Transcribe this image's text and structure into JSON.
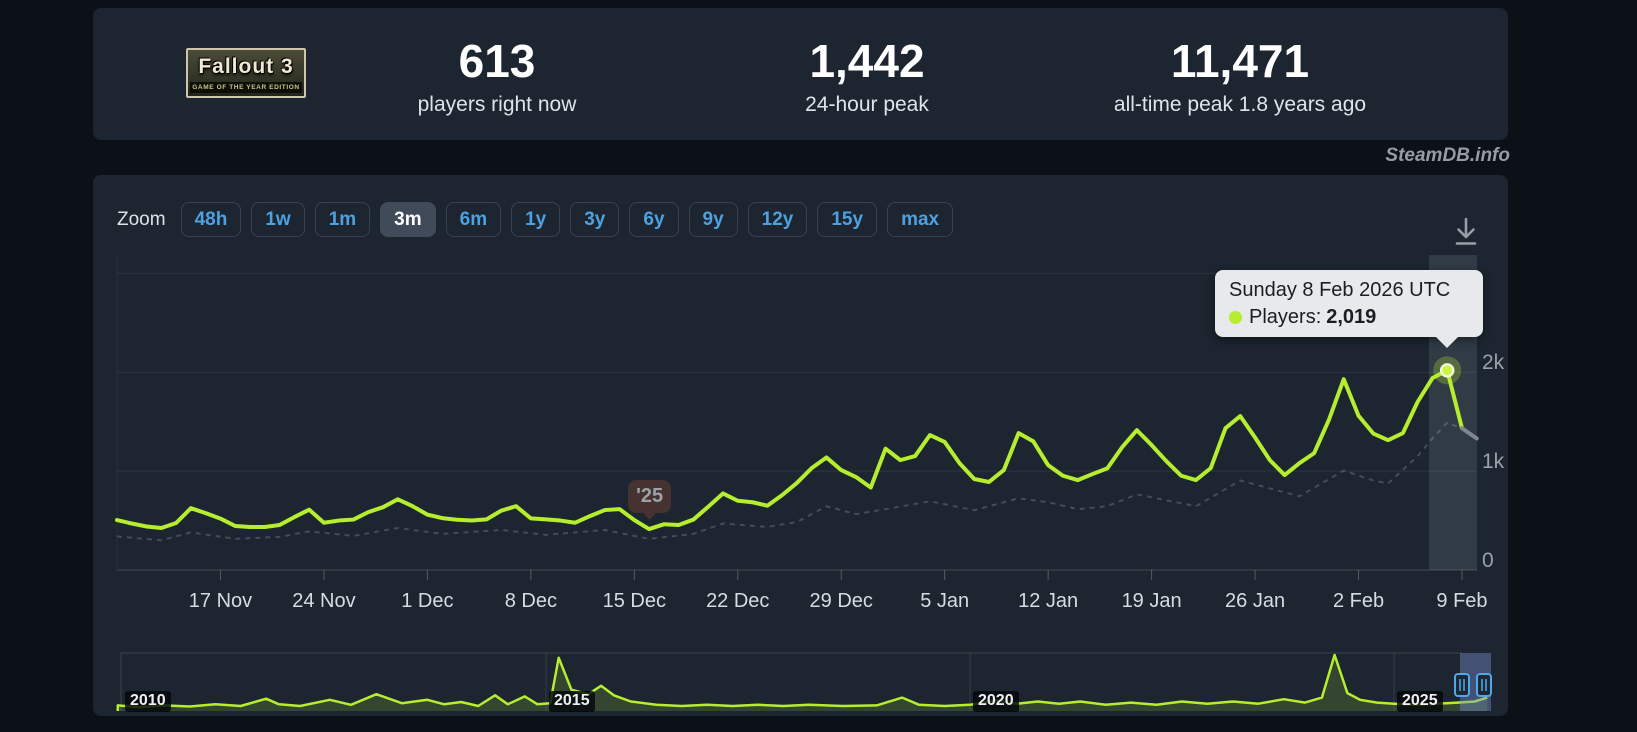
{
  "page": {
    "watermark": "SteamDB.info"
  },
  "stats_card": {
    "banner": {
      "title": "Fallout 3",
      "subtitle": "GAME OF THE YEAR EDITION"
    },
    "stats": [
      {
        "value": "613",
        "label": "players right now"
      },
      {
        "value": "1,442",
        "label": "24-hour peak"
      },
      {
        "value": "11,471",
        "label": "all-time peak 1.8 years ago"
      }
    ]
  },
  "toolbar": {
    "zoom_label": "Zoom",
    "buttons": [
      {
        "label": "48h",
        "active": false
      },
      {
        "label": "1w",
        "active": false
      },
      {
        "label": "1m",
        "active": false
      },
      {
        "label": "3m",
        "active": true
      },
      {
        "label": "6m",
        "active": false
      },
      {
        "label": "1y",
        "active": false
      },
      {
        "label": "3y",
        "active": false
      },
      {
        "label": "6y",
        "active": false
      },
      {
        "label": "9y",
        "active": false
      },
      {
        "label": "12y",
        "active": false
      },
      {
        "label": "15y",
        "active": false
      },
      {
        "label": "max",
        "active": false
      }
    ]
  },
  "tooltip": {
    "date": "Sunday 8 Feb 2026 UTC",
    "series_label": "Players:",
    "value": "2,019"
  },
  "chart_data": {
    "type": "line",
    "title": "Fallout 3 concurrent players, 3-month zoom",
    "xlabel": "",
    "ylabel": "",
    "ylim": [
      0,
      3185
    ],
    "grid": "horizontal",
    "legend_position": "none",
    "start_date": "10 Nov 2025",
    "interval": "1 day",
    "line_color": "#b6ee2f",
    "series": [
      {
        "name": "Players",
        "color": "#b6ee2f",
        "values": [
          505,
          470,
          440,
          425,
          475,
          625,
          575,
          520,
          445,
          435,
          435,
          455,
          535,
          610,
          478,
          500,
          510,
          585,
          635,
          715,
          645,
          560,
          525,
          508,
          500,
          512,
          600,
          645,
          522,
          512,
          500,
          478,
          545,
          606,
          616,
          505,
          414,
          462,
          455,
          510,
          640,
          774,
          700,
          685,
          650,
          757,
          880,
          1030,
          1138,
          1010,
          940,
          834,
          1227,
          1111,
          1152,
          1364,
          1295,
          1081,
          920,
          890,
          1010,
          1384,
          1300,
          1060,
          953,
          909,
          970,
          1027,
          1240,
          1414,
          1263,
          1100,
          953,
          909,
          1030,
          1434,
          1556,
          1340,
          1111,
          960,
          1080,
          1182,
          1520,
          1929,
          1560,
          1380,
          1313,
          1384,
          1700,
          1940,
          2019,
          1434
        ]
      }
    ],
    "partial_tail": {
      "day": 92,
      "value": 1330
    },
    "trend": [
      [
        0,
        340
      ],
      [
        3,
        300
      ],
      [
        5,
        380
      ],
      [
        8,
        315
      ],
      [
        11,
        335
      ],
      [
        13,
        390
      ],
      [
        16,
        345
      ],
      [
        19,
        425
      ],
      [
        22,
        365
      ],
      [
        26,
        405
      ],
      [
        29,
        355
      ],
      [
        33,
        405
      ],
      [
        36,
        315
      ],
      [
        39,
        365
      ],
      [
        41,
        470
      ],
      [
        44,
        435
      ],
      [
        46,
        485
      ],
      [
        48,
        645
      ],
      [
        50,
        565
      ],
      [
        52,
        615
      ],
      [
        55,
        695
      ],
      [
        58,
        605
      ],
      [
        61,
        725
      ],
      [
        63,
        685
      ],
      [
        65,
        615
      ],
      [
        67,
        645
      ],
      [
        69,
        765
      ],
      [
        71,
        705
      ],
      [
        73,
        645
      ],
      [
        76,
        905
      ],
      [
        78,
        825
      ],
      [
        80,
        745
      ],
      [
        83,
        1005
      ],
      [
        85,
        905
      ],
      [
        86,
        875
      ],
      [
        88,
        1150
      ],
      [
        89,
        1330
      ],
      [
        90,
        1490
      ],
      [
        91,
        1430
      ],
      [
        92,
        1330
      ]
    ],
    "yticks": [
      {
        "v": 0,
        "label": "0"
      },
      {
        "v": 1000,
        "label": "1k"
      },
      {
        "v": 2000,
        "label": "2k"
      },
      {
        "v": 3000,
        "label": ""
      }
    ],
    "xticks": [
      {
        "d": 7,
        "label": "17 Nov"
      },
      {
        "d": 14,
        "label": "24 Nov"
      },
      {
        "d": 21,
        "label": "1 Dec"
      },
      {
        "d": 28,
        "label": "8 Dec"
      },
      {
        "d": 35,
        "label": "15 Dec"
      },
      {
        "d": 42,
        "label": "22 Dec"
      },
      {
        "d": 49,
        "label": "29 Dec"
      },
      {
        "d": 56,
        "label": "5 Jan"
      },
      {
        "d": 63,
        "label": "12 Jan"
      },
      {
        "d": 70,
        "label": "19 Jan"
      },
      {
        "d": 77,
        "label": "26 Jan"
      },
      {
        "d": 84,
        "label": "2 Feb"
      },
      {
        "d": 91,
        "label": "9 Feb"
      }
    ],
    "event_flag": {
      "label": "'25",
      "day": 36
    },
    "hover_point": {
      "day": 90,
      "value": 2019,
      "date": "Sunday 8 Feb 2026 UTC"
    }
  },
  "navigator": {
    "selected_range": "3m",
    "years": [
      {
        "x": 2010,
        "label": "2010"
      },
      {
        "x": 2015,
        "label": "2015"
      },
      {
        "x": 2020,
        "label": "2020"
      },
      {
        "x": 2025,
        "label": "2025"
      }
    ],
    "series": [
      [
        2009.95,
        0.1
      ],
      [
        2010.2,
        0.07
      ],
      [
        2010.5,
        0.1
      ],
      [
        2010.8,
        0.08
      ],
      [
        2011.1,
        0.12
      ],
      [
        2011.4,
        0.09
      ],
      [
        2011.7,
        0.22
      ],
      [
        2011.85,
        0.12
      ],
      [
        2012.1,
        0.09
      ],
      [
        2012.45,
        0.2
      ],
      [
        2012.7,
        0.11
      ],
      [
        2013.0,
        0.3
      ],
      [
        2013.3,
        0.14
      ],
      [
        2013.6,
        0.2
      ],
      [
        2013.8,
        0.12
      ],
      [
        2014.0,
        0.16
      ],
      [
        2014.2,
        0.09
      ],
      [
        2014.4,
        0.28
      ],
      [
        2014.55,
        0.12
      ],
      [
        2014.75,
        0.26
      ],
      [
        2014.9,
        0.12
      ],
      [
        2015.05,
        0.14
      ],
      [
        2015.15,
        0.95
      ],
      [
        2015.3,
        0.38
      ],
      [
        2015.5,
        0.3
      ],
      [
        2015.65,
        0.45
      ],
      [
        2015.8,
        0.28
      ],
      [
        2016.0,
        0.17
      ],
      [
        2016.3,
        0.11
      ],
      [
        2016.6,
        0.09
      ],
      [
        2016.9,
        0.11
      ],
      [
        2017.2,
        0.09
      ],
      [
        2017.5,
        0.11
      ],
      [
        2017.8,
        0.09
      ],
      [
        2018.1,
        0.11
      ],
      [
        2018.5,
        0.09
      ],
      [
        2018.9,
        0.1
      ],
      [
        2019.2,
        0.24
      ],
      [
        2019.4,
        0.11
      ],
      [
        2019.7,
        0.09
      ],
      [
        2020.0,
        0.11
      ],
      [
        2020.3,
        0.19
      ],
      [
        2020.55,
        0.13
      ],
      [
        2020.8,
        0.17
      ],
      [
        2021.05,
        0.13
      ],
      [
        2021.3,
        0.17
      ],
      [
        2021.6,
        0.11
      ],
      [
        2021.9,
        0.15
      ],
      [
        2022.2,
        0.11
      ],
      [
        2022.5,
        0.17
      ],
      [
        2022.8,
        0.13
      ],
      [
        2023.1,
        0.17
      ],
      [
        2023.4,
        0.13
      ],
      [
        2023.7,
        0.21
      ],
      [
        2023.95,
        0.15
      ],
      [
        2024.15,
        0.24
      ],
      [
        2024.3,
        1.0
      ],
      [
        2024.45,
        0.32
      ],
      [
        2024.6,
        0.2
      ],
      [
        2024.8,
        0.15
      ],
      [
        2025.0,
        0.13
      ],
      [
        2025.25,
        0.11
      ],
      [
        2025.5,
        0.13
      ],
      [
        2025.75,
        0.15
      ],
      [
        2025.95,
        0.17
      ],
      [
        2026.1,
        0.24
      ]
    ]
  }
}
